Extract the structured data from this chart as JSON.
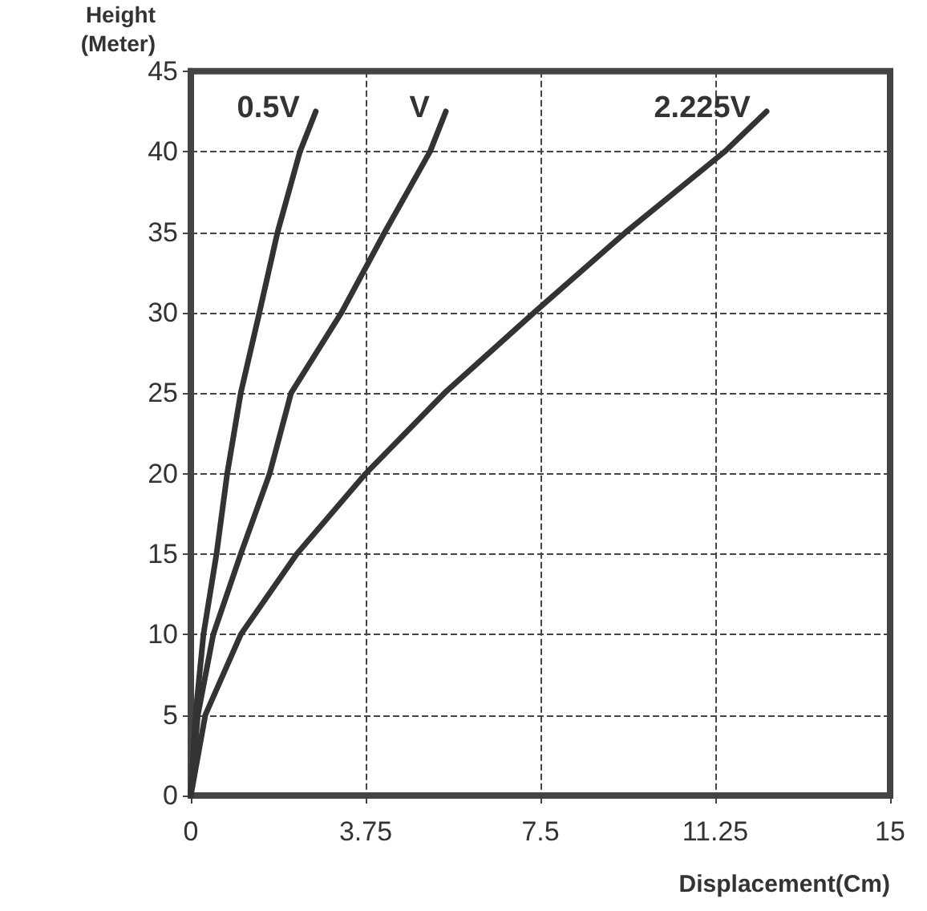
{
  "chart_data": {
    "type": "line",
    "xlabel": "Displacement(Cm)",
    "ylabel": "Height\n(Meter)",
    "xlim": [
      0,
      15
    ],
    "xticks": [
      0,
      3.75,
      7.5,
      11.25,
      15
    ],
    "ylim": [
      0,
      45
    ],
    "yticks": [
      0,
      5,
      10,
      15,
      20,
      25,
      30,
      35,
      40,
      45
    ],
    "grid": true,
    "legend": false,
    "marker": "none",
    "line_style": "solid",
    "series": [
      {
        "name": "0.5V",
        "color": "#333333",
        "x": [
          0,
          0.1,
          0.27,
          0.55,
          0.78,
          1.07,
          1.47,
          1.86,
          2.34,
          2.68
        ],
        "values": [
          0,
          5,
          10,
          15,
          20,
          25,
          30,
          35,
          40,
          42.5
        ]
      },
      {
        "name": "V",
        "color": "#333333",
        "x": [
          0,
          0.15,
          0.48,
          1.07,
          1.69,
          2.15,
          3.23,
          4.16,
          5.13,
          5.47
        ],
        "values": [
          0,
          5,
          10,
          15,
          20,
          25,
          30,
          35,
          40,
          42.5
        ]
      },
      {
        "name": "2.225V",
        "color": "#333333",
        "x": [
          0,
          0.31,
          1.07,
          2.27,
          3.75,
          5.44,
          7.36,
          9.33,
          11.45,
          12.35
        ],
        "values": [
          0,
          5,
          10,
          15,
          20,
          25,
          30,
          35,
          40,
          42.5
        ]
      }
    ]
  }
}
